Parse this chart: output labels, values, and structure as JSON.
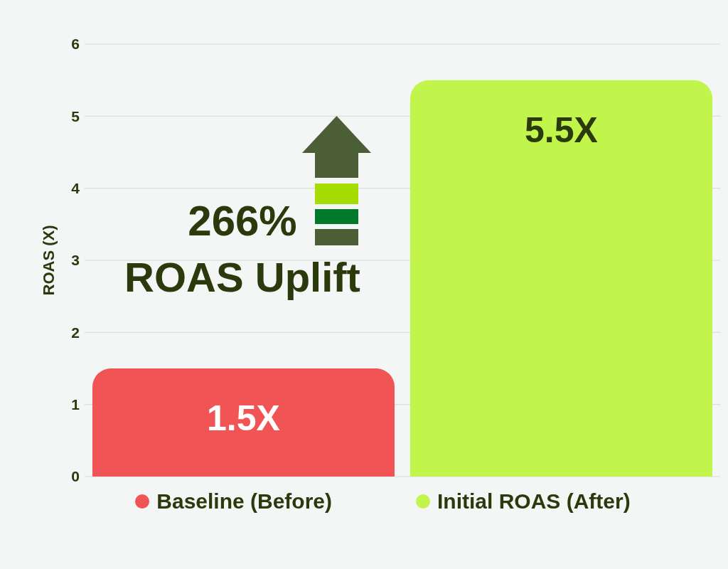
{
  "chart_data": {
    "type": "bar",
    "ylabel": "ROAS (X)",
    "categories": [
      null,
      null
    ],
    "series": [
      {
        "name": "Baseline (Before)",
        "color": "#f05454",
        "values": [
          1.5,
          null
        ],
        "value_labels": [
          "1.5X",
          null
        ]
      },
      {
        "name": "Initial ROAS (After)",
        "color": "#c2f54b",
        "values": [
          null,
          5.5
        ],
        "value_labels": [
          null,
          "5.5X"
        ]
      }
    ],
    "ylim": [
      0,
      6
    ],
    "yticks": [
      0,
      1,
      2,
      3,
      4,
      5,
      6
    ],
    "grid": "y",
    "legend": "bottom",
    "tick_labels": "y",
    "annotations": [
      "266%",
      "ROAS Uplift"
    ]
  }
}
